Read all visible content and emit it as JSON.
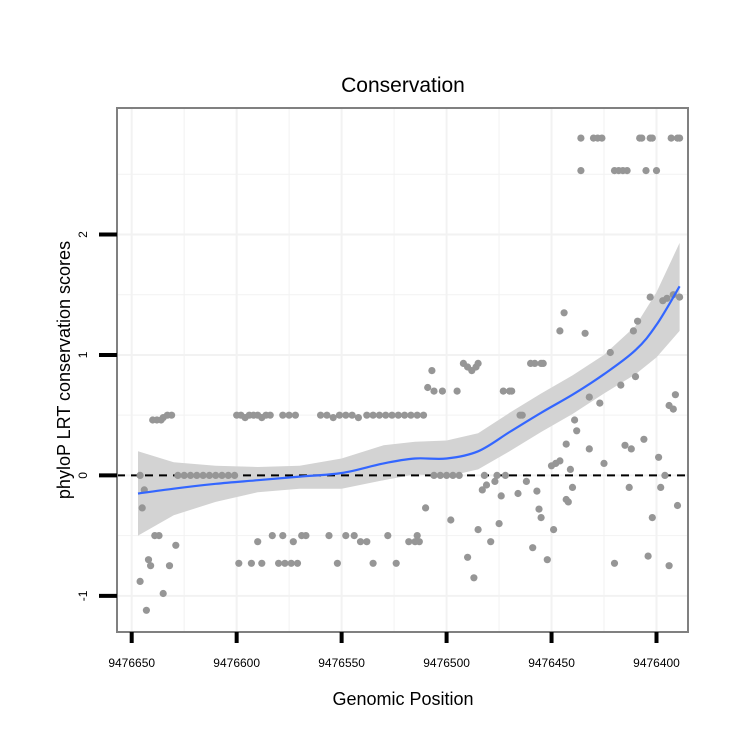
{
  "chart_data": {
    "type": "scatter",
    "title": "Conservation",
    "xlabel": "Genomic Position",
    "ylabel": "phyloP LRT conservation scores",
    "xlim": [
      9476657,
      9476385
    ],
    "x_reversed": true,
    "ylim": [
      -1.3,
      3.05
    ],
    "x_ticks": [
      9476650,
      9476600,
      9476550,
      9476500,
      9476450,
      9476400
    ],
    "x_tick_labels": [
      "9476650",
      "9476600",
      "9476550",
      "9476500",
      "9476450",
      "9476400"
    ],
    "y_ticks": [
      -1,
      0,
      1,
      2
    ],
    "y_tick_labels": [
      "-1",
      "0",
      "1",
      "2"
    ],
    "grid": true,
    "reference_line": {
      "y": 0,
      "style": "dashed"
    },
    "colors": {
      "points": "#969696",
      "smooth": "#3366ff",
      "ribbon": "#d3d3d3",
      "panel_border": "#808080",
      "grid": "#f2f2f2"
    },
    "points": [
      {
        "x": 9476646,
        "y": 0.0
      },
      {
        "x": 9476645,
        "y": -0.27
      },
      {
        "x": 9476644,
        "y": -0.12
      },
      {
        "x": 9476646,
        "y": -0.88
      },
      {
        "x": 9476643,
        "y": -1.12
      },
      {
        "x": 9476642,
        "y": -0.7
      },
      {
        "x": 9476641,
        "y": -0.75
      },
      {
        "x": 9476639,
        "y": -0.5
      },
      {
        "x": 9476637,
        "y": -0.5
      },
      {
        "x": 9476640,
        "y": 0.46
      },
      {
        "x": 9476638,
        "y": 0.46
      },
      {
        "x": 9476636,
        "y": 0.46
      },
      {
        "x": 9476635,
        "y": 0.48
      },
      {
        "x": 9476633,
        "y": 0.5
      },
      {
        "x": 9476631,
        "y": 0.5
      },
      {
        "x": 9476635,
        "y": -0.98
      },
      {
        "x": 9476632,
        "y": -0.75
      },
      {
        "x": 9476629,
        "y": -0.58
      },
      {
        "x": 9476628,
        "y": 0.0
      },
      {
        "x": 9476625,
        "y": 0.0
      },
      {
        "x": 9476622,
        "y": 0.0
      },
      {
        "x": 9476619,
        "y": 0.0
      },
      {
        "x": 9476616,
        "y": 0.0
      },
      {
        "x": 9476613,
        "y": 0.0
      },
      {
        "x": 9476610,
        "y": 0.0
      },
      {
        "x": 9476607,
        "y": 0.0
      },
      {
        "x": 9476604,
        "y": 0.0
      },
      {
        "x": 9476601,
        "y": 0.0
      },
      {
        "x": 9476600,
        "y": 0.5
      },
      {
        "x": 9476598,
        "y": 0.5
      },
      {
        "x": 9476596,
        "y": 0.48
      },
      {
        "x": 9476594,
        "y": 0.5
      },
      {
        "x": 9476592,
        "y": 0.5
      },
      {
        "x": 9476590,
        "y": 0.5
      },
      {
        "x": 9476588,
        "y": 0.48
      },
      {
        "x": 9476586,
        "y": 0.5
      },
      {
        "x": 9476584,
        "y": 0.5
      },
      {
        "x": 9476578,
        "y": 0.5
      },
      {
        "x": 9476575,
        "y": 0.5
      },
      {
        "x": 9476572,
        "y": 0.5
      },
      {
        "x": 9476599,
        "y": -0.73
      },
      {
        "x": 9476593,
        "y": -0.73
      },
      {
        "x": 9476590,
        "y": -0.55
      },
      {
        "x": 9476588,
        "y": -0.73
      },
      {
        "x": 9476583,
        "y": -0.5
      },
      {
        "x": 9476580,
        "y": -0.73
      },
      {
        "x": 9476577,
        "y": -0.73
      },
      {
        "x": 9476574,
        "y": -0.73
      },
      {
        "x": 9476571,
        "y": -0.73
      },
      {
        "x": 9476578,
        "y": -0.5
      },
      {
        "x": 9476573,
        "y": -0.55
      },
      {
        "x": 9476569,
        "y": -0.5
      },
      {
        "x": 9476567,
        "y": -0.5
      },
      {
        "x": 9476560,
        "y": 0.5
      },
      {
        "x": 9476557,
        "y": 0.5
      },
      {
        "x": 9476554,
        "y": 0.48
      },
      {
        "x": 9476551,
        "y": 0.5
      },
      {
        "x": 9476548,
        "y": 0.5
      },
      {
        "x": 9476545,
        "y": 0.5
      },
      {
        "x": 9476542,
        "y": 0.48
      },
      {
        "x": 9476538,
        "y": 0.5
      },
      {
        "x": 9476535,
        "y": 0.5
      },
      {
        "x": 9476532,
        "y": 0.5
      },
      {
        "x": 9476529,
        "y": 0.5
      },
      {
        "x": 9476526,
        "y": 0.5
      },
      {
        "x": 9476523,
        "y": 0.5
      },
      {
        "x": 9476520,
        "y": 0.5
      },
      {
        "x": 9476517,
        "y": 0.5
      },
      {
        "x": 9476514,
        "y": 0.5
      },
      {
        "x": 9476511,
        "y": 0.5
      },
      {
        "x": 9476556,
        "y": -0.5
      },
      {
        "x": 9476552,
        "y": -0.73
      },
      {
        "x": 9476548,
        "y": -0.5
      },
      {
        "x": 9476544,
        "y": -0.5
      },
      {
        "x": 9476541,
        "y": -0.55
      },
      {
        "x": 9476538,
        "y": -0.55
      },
      {
        "x": 9476535,
        "y": -0.73
      },
      {
        "x": 9476528,
        "y": -0.5
      },
      {
        "x": 9476524,
        "y": -0.73
      },
      {
        "x": 9476518,
        "y": -0.55
      },
      {
        "x": 9476515,
        "y": -0.55
      },
      {
        "x": 9476514,
        "y": -0.5
      },
      {
        "x": 9476513,
        "y": -0.55
      },
      {
        "x": 9476509,
        "y": 0.73
      },
      {
        "x": 9476507,
        "y": 0.87
      },
      {
        "x": 9476506,
        "y": 0.7
      },
      {
        "x": 9476502,
        "y": 0.7
      },
      {
        "x": 9476506,
        "y": 0.0
      },
      {
        "x": 9476503,
        "y": 0.0
      },
      {
        "x": 9476500,
        "y": 0.0
      },
      {
        "x": 9476497,
        "y": 0.0
      },
      {
        "x": 9476494,
        "y": 0.0
      },
      {
        "x": 9476510,
        "y": -0.27
      },
      {
        "x": 9476498,
        "y": -0.37
      },
      {
        "x": 9476495,
        "y": 0.7
      },
      {
        "x": 9476492,
        "y": 0.93
      },
      {
        "x": 9476490,
        "y": 0.9
      },
      {
        "x": 9476488,
        "y": 0.87
      },
      {
        "x": 9476486,
        "y": 0.9
      },
      {
        "x": 9476485,
        "y": 0.93
      },
      {
        "x": 9476490,
        "y": -0.68
      },
      {
        "x": 9476487,
        "y": -0.85
      },
      {
        "x": 9476485,
        "y": -0.45
      },
      {
        "x": 9476483,
        "y": -0.12
      },
      {
        "x": 9476482,
        "y": 0.0
      },
      {
        "x": 9476481,
        "y": -0.08
      },
      {
        "x": 9476479,
        "y": -0.55
      },
      {
        "x": 9476477,
        "y": -0.05
      },
      {
        "x": 9476476,
        "y": 0.0
      },
      {
        "x": 9476474,
        "y": -0.17
      },
      {
        "x": 9476475,
        "y": -0.4
      },
      {
        "x": 9476472,
        "y": 0.0
      },
      {
        "x": 9476473,
        "y": 0.7
      },
      {
        "x": 9476470,
        "y": 0.7
      },
      {
        "x": 9476469,
        "y": 0.7
      },
      {
        "x": 9476466,
        "y": -0.15
      },
      {
        "x": 9476465,
        "y": 0.5
      },
      {
        "x": 9476464,
        "y": 0.5
      },
      {
        "x": 9476462,
        "y": -0.05
      },
      {
        "x": 9476459,
        "y": -0.6
      },
      {
        "x": 9476460,
        "y": 0.93
      },
      {
        "x": 9476458,
        "y": 0.93
      },
      {
        "x": 9476457,
        "y": -0.13
      },
      {
        "x": 9476456,
        "y": -0.28
      },
      {
        "x": 9476455,
        "y": -0.35
      },
      {
        "x": 9476455,
        "y": 0.93
      },
      {
        "x": 9476454,
        "y": 0.93
      },
      {
        "x": 9476452,
        "y": -0.7
      },
      {
        "x": 9476450,
        "y": 0.08
      },
      {
        "x": 9476449,
        "y": -0.45
      },
      {
        "x": 9476448,
        "y": 0.1
      },
      {
        "x": 9476446,
        "y": 0.12
      },
      {
        "x": 9476446,
        "y": 1.2
      },
      {
        "x": 9476444,
        "y": 1.35
      },
      {
        "x": 9476443,
        "y": 0.26
      },
      {
        "x": 9476443,
        "y": -0.2
      },
      {
        "x": 9476442,
        "y": -0.22
      },
      {
        "x": 9476441,
        "y": 0.05
      },
      {
        "x": 9476440,
        "y": -0.1
      },
      {
        "x": 9476439,
        "y": 0.46
      },
      {
        "x": 9476438,
        "y": 0.37
      },
      {
        "x": 9476436,
        "y": 2.53
      },
      {
        "x": 9476436,
        "y": 2.8
      },
      {
        "x": 9476434,
        "y": 1.18
      },
      {
        "x": 9476432,
        "y": 0.65
      },
      {
        "x": 9476432,
        "y": 0.22
      },
      {
        "x": 9476430,
        "y": 2.8
      },
      {
        "x": 9476428,
        "y": 2.8
      },
      {
        "x": 9476427,
        "y": 0.6
      },
      {
        "x": 9476426,
        "y": 2.8
      },
      {
        "x": 9476425,
        "y": 0.1
      },
      {
        "x": 9476422,
        "y": 1.02
      },
      {
        "x": 9476420,
        "y": -0.73
      },
      {
        "x": 9476420,
        "y": 2.53
      },
      {
        "x": 9476418,
        "y": 2.53
      },
      {
        "x": 9476417,
        "y": 0.75
      },
      {
        "x": 9476416,
        "y": 2.53
      },
      {
        "x": 9476415,
        "y": 0.25
      },
      {
        "x": 9476414,
        "y": 2.53
      },
      {
        "x": 9476413,
        "y": -0.1
      },
      {
        "x": 9476412,
        "y": 0.22
      },
      {
        "x": 9476411,
        "y": 1.2
      },
      {
        "x": 9476410,
        "y": 0.82
      },
      {
        "x": 9476409,
        "y": 1.28
      },
      {
        "x": 9476408,
        "y": 2.8
      },
      {
        "x": 9476407,
        "y": 2.8
      },
      {
        "x": 9476406,
        "y": 0.3
      },
      {
        "x": 9476405,
        "y": 2.53
      },
      {
        "x": 9476404,
        "y": -0.67
      },
      {
        "x": 9476403,
        "y": 1.48
      },
      {
        "x": 9476403,
        "y": 2.8
      },
      {
        "x": 9476402,
        "y": 2.8
      },
      {
        "x": 9476402,
        "y": -0.35
      },
      {
        "x": 9476400,
        "y": 2.53
      },
      {
        "x": 9476399,
        "y": 0.15
      },
      {
        "x": 9476398,
        "y": -0.1
      },
      {
        "x": 9476397,
        "y": 1.45
      },
      {
        "x": 9476396,
        "y": 0.0
      },
      {
        "x": 9476395,
        "y": 1.47
      },
      {
        "x": 9476394,
        "y": 0.58
      },
      {
        "x": 9476394,
        "y": -0.75
      },
      {
        "x": 9476393,
        "y": 2.8
      },
      {
        "x": 9476392,
        "y": 0.55
      },
      {
        "x": 9476392,
        "y": 1.5
      },
      {
        "x": 9476391,
        "y": 0.67
      },
      {
        "x": 9476390,
        "y": 2.8
      },
      {
        "x": 9476390,
        "y": -0.25
      },
      {
        "x": 9476389,
        "y": 1.48
      },
      {
        "x": 9476389,
        "y": 2.8
      }
    ],
    "smooth": [
      {
        "x": 9476647,
        "y": -0.15,
        "lo": -0.5,
        "hi": 0.2
      },
      {
        "x": 9476630,
        "y": -0.11,
        "lo": -0.33,
        "hi": 0.11
      },
      {
        "x": 9476610,
        "y": -0.07,
        "lo": -0.22,
        "hi": 0.08
      },
      {
        "x": 9476590,
        "y": -0.04,
        "lo": -0.14,
        "hi": 0.07
      },
      {
        "x": 9476570,
        "y": -0.01,
        "lo": -0.11,
        "hi": 0.08
      },
      {
        "x": 9476550,
        "y": 0.02,
        "lo": -0.11,
        "hi": 0.14
      },
      {
        "x": 9476530,
        "y": 0.1,
        "lo": -0.04,
        "hi": 0.25
      },
      {
        "x": 9476515,
        "y": 0.14,
        "lo": 0.01,
        "hi": 0.28
      },
      {
        "x": 9476500,
        "y": 0.14,
        "lo": -0.01,
        "hi": 0.29
      },
      {
        "x": 9476485,
        "y": 0.2,
        "lo": 0.05,
        "hi": 0.35
      },
      {
        "x": 9476470,
        "y": 0.36,
        "lo": 0.2,
        "hi": 0.52
      },
      {
        "x": 9476455,
        "y": 0.52,
        "lo": 0.36,
        "hi": 0.68
      },
      {
        "x": 9476440,
        "y": 0.67,
        "lo": 0.51,
        "hi": 0.83
      },
      {
        "x": 9476425,
        "y": 0.84,
        "lo": 0.68,
        "hi": 1.0
      },
      {
        "x": 9476410,
        "y": 1.04,
        "lo": 0.84,
        "hi": 1.24
      },
      {
        "x": 9476400,
        "y": 1.25,
        "lo": 0.98,
        "hi": 1.52
      },
      {
        "x": 9476389,
        "y": 1.57,
        "lo": 1.2,
        "hi": 1.93
      }
    ]
  }
}
